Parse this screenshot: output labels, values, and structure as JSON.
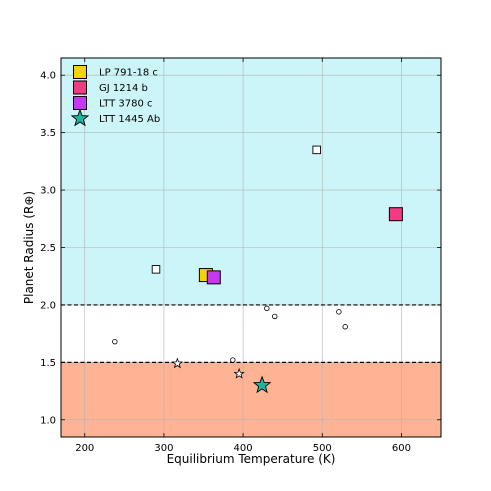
{
  "chart_data": {
    "type": "scatter",
    "title": "",
    "xlabel": "Equilibrium Temperature (K)",
    "ylabel": "Planet Radius (R⊕)",
    "xlim": [
      170,
      650
    ],
    "ylim": [
      0.85,
      4.15
    ],
    "xticks": [
      200,
      300,
      400,
      500,
      600
    ],
    "yticks": [
      1.0,
      1.5,
      2.0,
      2.5,
      3.0,
      3.5,
      4.0
    ],
    "grid": true,
    "regions": [
      {
        "from": 2.0,
        "to": 4.15,
        "color": "#ccf5f9"
      },
      {
        "from": 0.85,
        "to": 1.5,
        "color": "#fdb394"
      }
    ],
    "threshold_lines": [
      1.5,
      2.0
    ],
    "legend_position": "top-left",
    "series": [
      {
        "name": "LP 791-18 c",
        "marker": "square",
        "color": "#f5d300",
        "points": [
          {
            "x": 353,
            "y": 2.26
          }
        ]
      },
      {
        "name": "GJ 1214 b",
        "marker": "square",
        "color": "#f03c82",
        "points": [
          {
            "x": 593,
            "y": 2.79
          }
        ]
      },
      {
        "name": "LTT 3780 c",
        "marker": "square",
        "color": "#c838f0",
        "points": [
          {
            "x": 363,
            "y": 2.24
          }
        ]
      },
      {
        "name": "LTT 1445 Ab",
        "marker": "star",
        "color": "#1ab4a0",
        "points": [
          {
            "x": 424,
            "y": 1.3
          }
        ]
      }
    ],
    "other_points": {
      "squares": [
        {
          "x": 290,
          "y": 2.31
        },
        {
          "x": 493,
          "y": 3.35
        }
      ],
      "circles": [
        {
          "x": 238,
          "y": 1.68
        },
        {
          "x": 387,
          "y": 1.52
        },
        {
          "x": 430,
          "y": 1.97
        },
        {
          "x": 440,
          "y": 1.9
        },
        {
          "x": 521,
          "y": 1.94
        },
        {
          "x": 529,
          "y": 1.81
        }
      ],
      "stars": [
        {
          "x": 317,
          "y": 1.49
        },
        {
          "x": 395,
          "y": 1.4
        }
      ]
    }
  }
}
